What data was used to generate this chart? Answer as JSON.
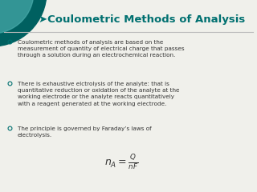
{
  "title": "➤Coulometric Methods of Analysis",
  "title_color": "#007070",
  "line_color": "#bbbbbb",
  "background_color": "#f0f0eb",
  "circle_color_outer": "#006060",
  "circle_color_inner": "#4aadad",
  "bullet_color": "#007070",
  "text_color": "#333333",
  "bullet1": "Coulometric methods of analysis are based on the\nmeasurement of quantity of electrical charge that passes\nthrough a solution during an electrochemical reaction.",
  "bullet2": "There is exhaustive elctrolysis of the analyte: that is\nquantitative reduction or oxidation of the analyte at the\nworking electrode or the analyte reacts quantitatively\nwith a reagent generated at the working electrode.",
  "bullet3": "The principle is governed by Faraday’s laws of\nelectrolysis.",
  "title_fontsize": 9.5,
  "text_fontsize": 5.2,
  "bullet_fontsize": 5.5,
  "formula_fontsize": 9
}
